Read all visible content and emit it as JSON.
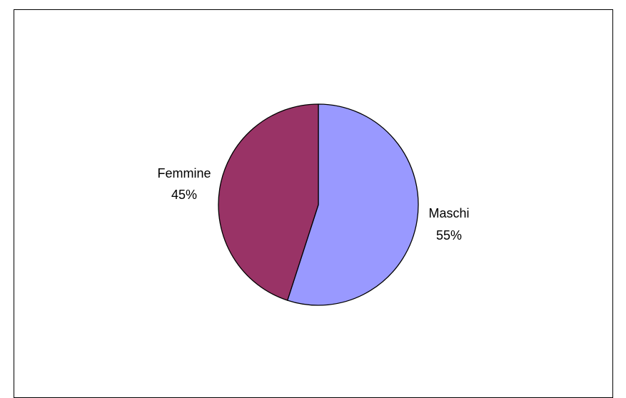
{
  "chart_data": {
    "type": "pie",
    "title": "",
    "slices": [
      {
        "label": "Maschi",
        "percent_label": "55%",
        "value": 55,
        "color": "#9999ff"
      },
      {
        "label": "Femmine",
        "percent_label": "45%",
        "value": 45,
        "color": "#993366"
      }
    ],
    "start_angle": "12 o'clock",
    "direction": "clockwise",
    "legend": "none",
    "labels": "category name and percentage outside each slice"
  }
}
